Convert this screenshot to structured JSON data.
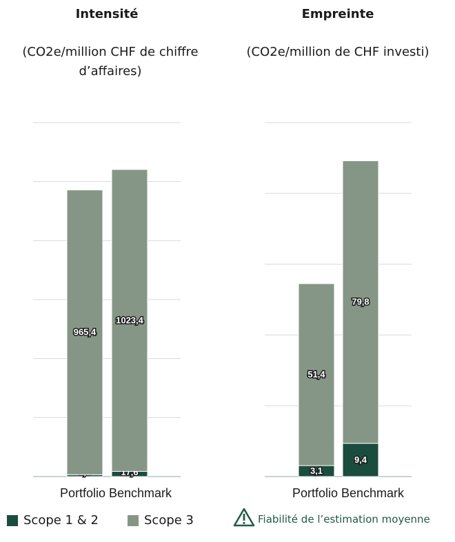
{
  "chart_data": [
    {
      "type": "bar",
      "stacked": true,
      "title": "Intensité",
      "subtitle": "(CO2e/million CHF de chiffre d’affaires)",
      "xlabel": "Portfolio Benchmark",
      "categories": [
        "Portfolio",
        "Benchmark"
      ],
      "series": [
        {
          "name": "Scope 1 & 2",
          "values": [
            6.3,
            17.6
          ],
          "labels": [
            "6,3",
            "17,6"
          ]
        },
        {
          "name": "Scope 3",
          "values": [
            965.4,
            1023.4
          ],
          "labels": [
            "965,4",
            "1023,4"
          ]
        }
      ],
      "ylim": [
        0,
        1200
      ],
      "grid": true
    },
    {
      "type": "bar",
      "stacked": true,
      "title": "Empreinte",
      "subtitle": "(CO2e/million de CHF investi)",
      "xlabel": "Portfolio Benchmark",
      "categories": [
        "Portfolio",
        "Benchmark"
      ],
      "series": [
        {
          "name": "Scope 1 & 2",
          "values": [
            3.1,
            9.4
          ],
          "labels": [
            "3,1",
            "9,4"
          ]
        },
        {
          "name": "Scope 3",
          "values": [
            51.4,
            79.8
          ],
          "labels": [
            "51,4",
            "79,8"
          ]
        }
      ],
      "ylim": [
        0,
        100
      ],
      "grid": true
    }
  ],
  "legend": {
    "items": [
      {
        "label": "Scope 1 & 2",
        "color": "#1b4d3e"
      },
      {
        "label": "Scope 3",
        "color": "#859686"
      }
    ],
    "warning_icon": "warning-triangle-icon",
    "warning_text": "Fiabilité de l’estimation moyenne"
  },
  "colors": {
    "scope12": "#1b4d3e",
    "scope3": "#859686",
    "grid": "#d9d9d9",
    "baseline": "#b8c2c8"
  }
}
